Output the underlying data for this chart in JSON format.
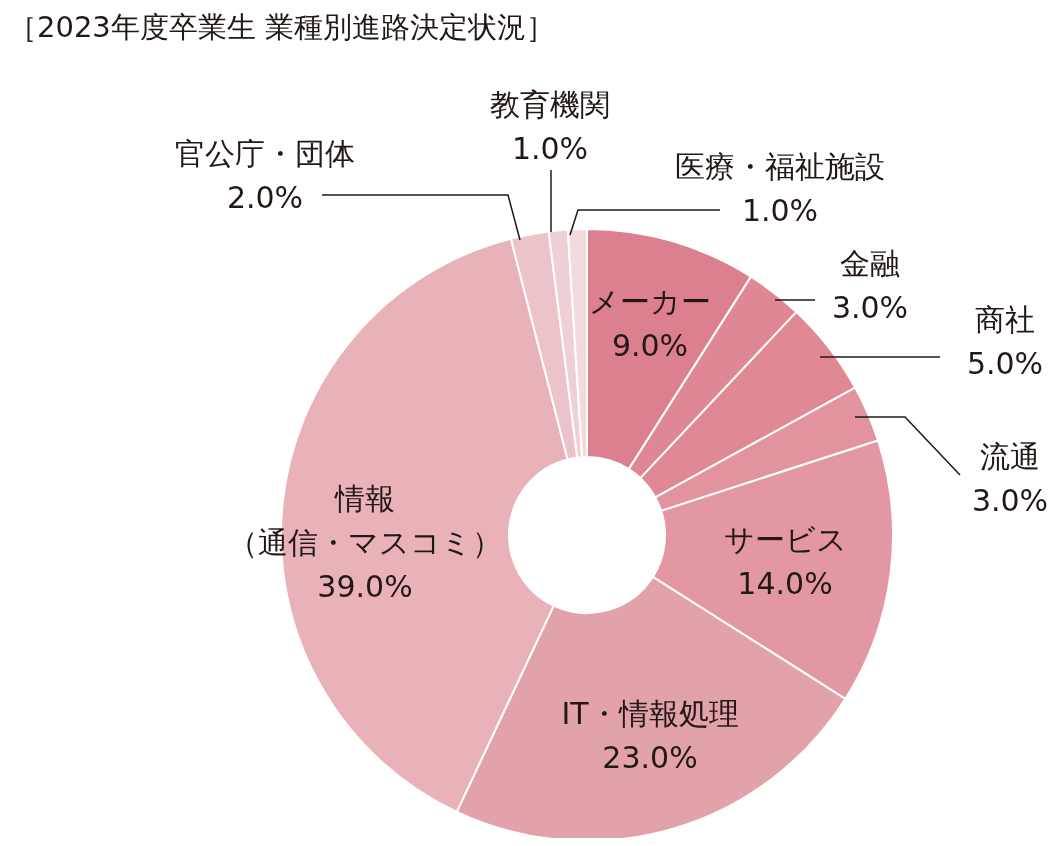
{
  "chart_data": {
    "type": "donut",
    "title": "［2023年度卒業生 業種別進路決定状況］",
    "categories": [
      "メーカー",
      "金融",
      "商社",
      "流通",
      "サービス",
      "IT・情報処理",
      "情報（通信・マスコミ）",
      "官公庁・団体",
      "教育機関",
      "医療・福祉施設"
    ],
    "values": [
      9,
      3,
      5,
      3,
      14,
      23,
      39,
      2,
      1,
      1
    ],
    "value_labels": [
      "9.0%",
      "3.0%",
      "5.0%",
      "3.0%",
      "14.0%",
      "23.0%",
      "39.0%",
      "2.0%",
      "1.0%",
      "1.0%"
    ],
    "colors": [
      "#dc7f8f",
      "#df8794",
      "#e08893",
      "#e2939e",
      "#e297a2",
      "#e2a2aa",
      "#e8b2b8",
      "#ecc3c8",
      "#efd0d4",
      "#f3dadd"
    ]
  }
}
